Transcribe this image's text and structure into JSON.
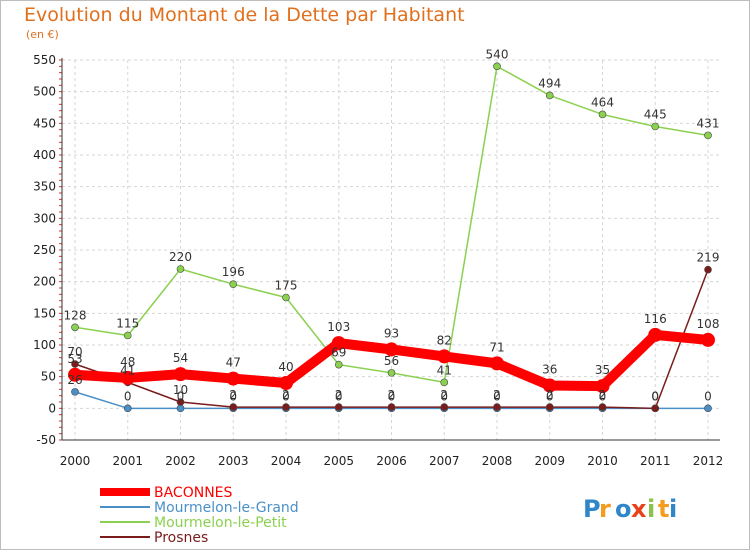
{
  "chart_data": {
    "type": "line",
    "title": "Evolution du Montant de la Dette par Habitant",
    "unit_label": "(en €)",
    "x": [
      "2000",
      "2001",
      "2002",
      "2003",
      "2004",
      "2005",
      "2006",
      "2007",
      "2008",
      "2009",
      "2010",
      "2011",
      "2012"
    ],
    "ylim": [
      -50,
      550
    ],
    "yticks": [
      -50,
      0,
      50,
      100,
      150,
      200,
      250,
      300,
      350,
      400,
      450,
      500,
      550
    ],
    "grid": true,
    "legend_position": "bottom-left",
    "series": [
      {
        "name": "BACONNES",
        "color": "#ff0000",
        "values": [
          53,
          48,
          54,
          47,
          40,
          103,
          93,
          82,
          71,
          36,
          35,
          116,
          108
        ]
      },
      {
        "name": "Mourmelon-le-Grand",
        "color": "#4a90c8",
        "values": [
          26,
          0,
          0,
          0,
          0,
          0,
          0,
          0,
          0,
          0,
          0,
          0,
          0
        ]
      },
      {
        "name": "Mourmelon-le-Petit",
        "color": "#8bd150",
        "values": [
          128,
          115,
          220,
          196,
          175,
          69,
          56,
          41,
          540,
          494,
          464,
          445,
          431
        ]
      },
      {
        "name": "Prosnes",
        "color": "#7a1c1c",
        "values": [
          70,
          41,
          10,
          2,
          2,
          2,
          2,
          2,
          2,
          2,
          2,
          0,
          219
        ]
      }
    ]
  },
  "brand": {
    "letters": [
      "P",
      "r",
      "o",
      "x",
      "i",
      "t",
      "i"
    ],
    "colors": [
      "#2f86c8",
      "#f39c1e",
      "#2f86c8",
      "#e8421a",
      "#8bc34a",
      "#f39c1e",
      "#2f86c8"
    ]
  }
}
